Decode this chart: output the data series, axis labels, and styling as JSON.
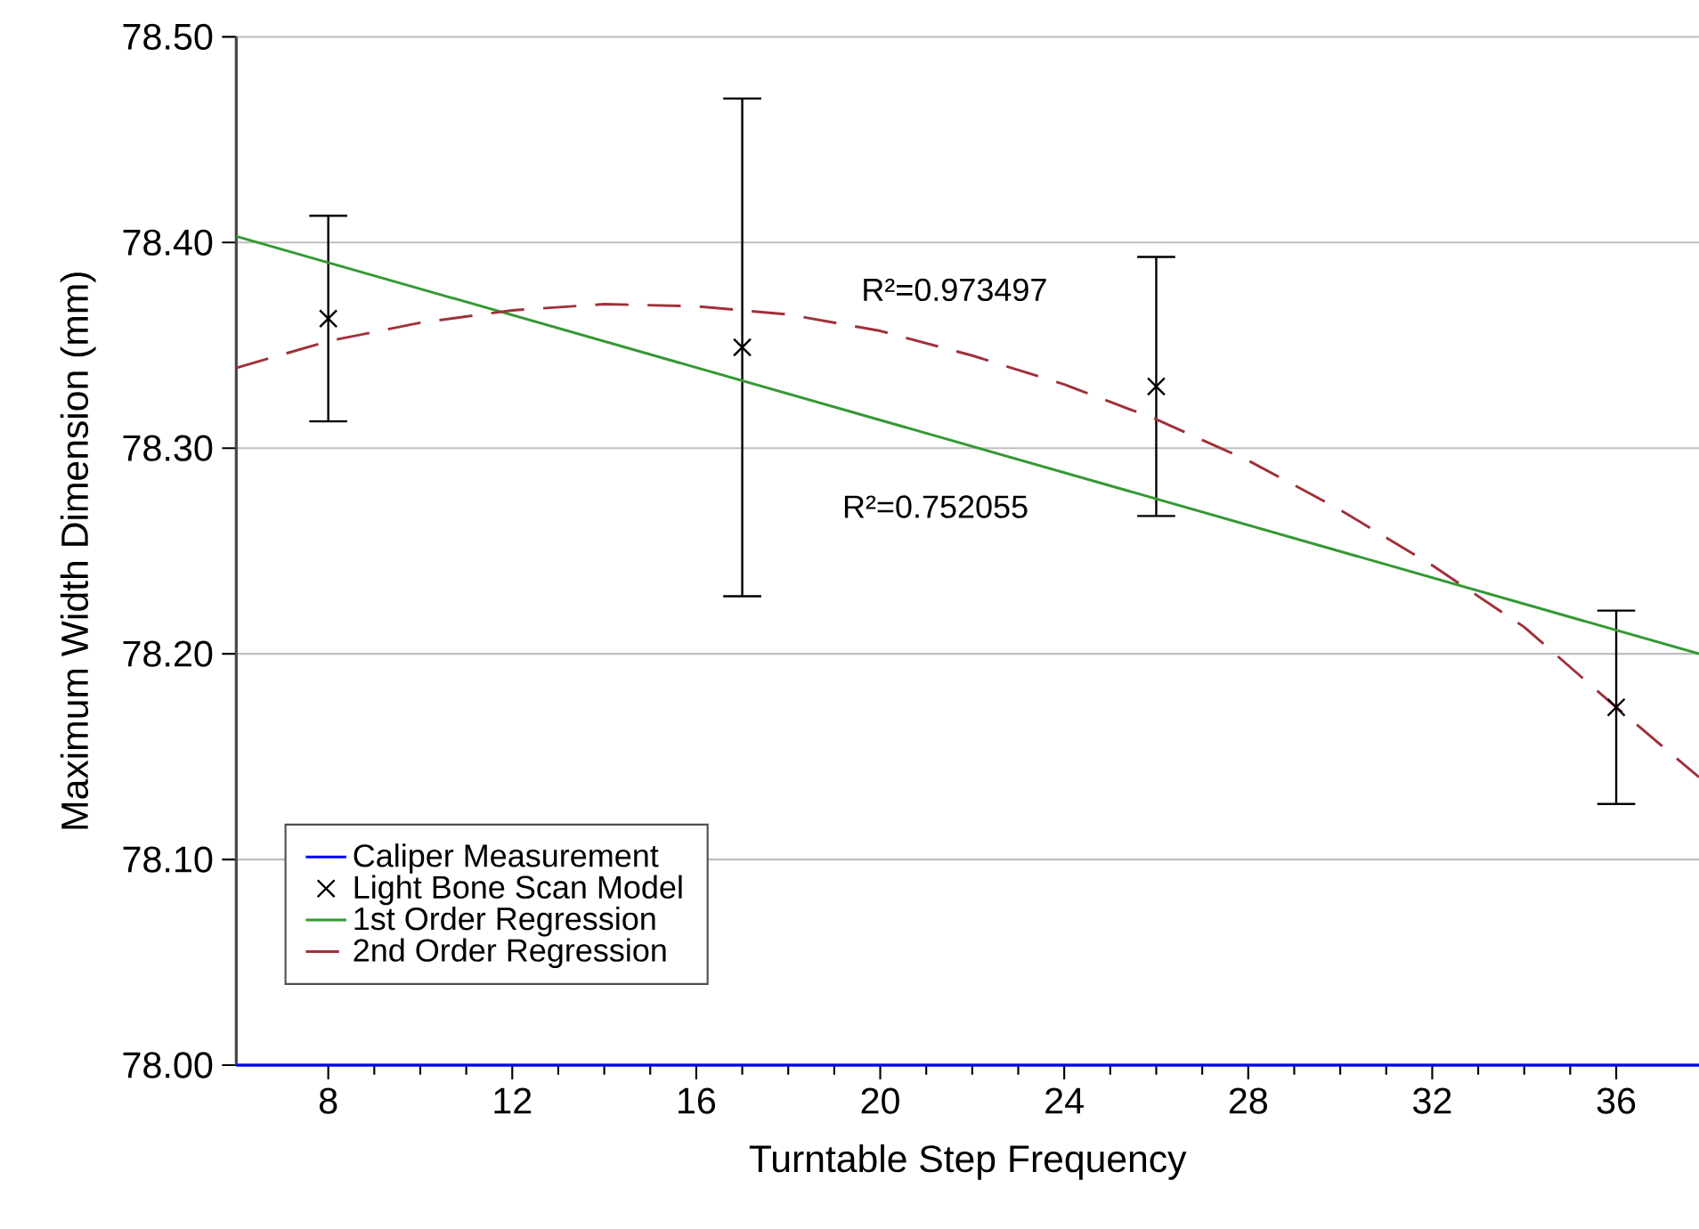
{
  "chart_data": {
    "type": "line",
    "xlabel": "Turntable Step Frequency",
    "ylabel": "Maximum Width Dimension (mm)",
    "xlim": [
      6,
      37.8
    ],
    "ylim": [
      78.0,
      78.5
    ],
    "xticks": [
      8,
      12,
      16,
      20,
      24,
      28,
      32,
      36
    ],
    "yticks": [
      {
        "value": 78.0,
        "label": "78.00"
      },
      {
        "value": 78.1,
        "label": "78.10"
      },
      {
        "value": 78.2,
        "label": "78.20"
      },
      {
        "value": 78.3,
        "label": "78.30"
      },
      {
        "value": 78.4,
        "label": "78.40"
      },
      {
        "value": 78.5,
        "label": "78.50"
      }
    ],
    "grid": "y",
    "legend": "bottom left",
    "series": [
      {
        "name": "Caliper Measurement",
        "color": "#0000ff",
        "x": [
          6,
          37.8
        ],
        "values": [
          78.0,
          78.0
        ]
      },
      {
        "name": "Light Bone Scan Model",
        "type": "scatter",
        "marker": "cross",
        "color": "#000000",
        "x": [
          8,
          17,
          26,
          36
        ],
        "values": [
          78.363,
          78.349,
          78.33,
          78.174
        ],
        "errors": [
          0.05,
          0.121,
          0.063,
          0.047
        ]
      },
      {
        "name": "1st Order Regression",
        "color": "#339933",
        "x": [
          6,
          37.8
        ],
        "values": [
          78.403,
          78.2
        ]
      },
      {
        "name": "2nd Order Regression",
        "line_style": "dashed",
        "color": "#a0303a",
        "x": [
          6,
          8,
          10,
          12,
          14,
          16,
          18,
          20,
          22,
          24,
          26,
          28,
          30,
          32,
          34,
          36,
          37.8
        ],
        "values": [
          78.339,
          78.352,
          78.361,
          78.367,
          78.37,
          78.369,
          78.365,
          78.357,
          78.345,
          78.331,
          78.314,
          78.294,
          78.27,
          78.243,
          78.213,
          78.174,
          78.14
        ]
      }
    ],
    "annotations": [
      "R²=0.973497",
      "R²=0.752055"
    ]
  }
}
